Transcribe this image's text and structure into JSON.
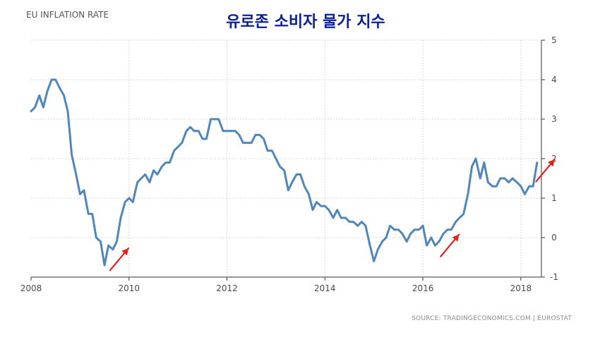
{
  "chart_data": {
    "type": "line",
    "title": "EU INFLATION RATE",
    "subtitle": "유로존 소비자 물가 지수",
    "source": "SOURCE: TRADINGECONOMICS.COM | EUROSTAT",
    "xlabel": "",
    "ylabel": "",
    "xlim": [
      2008.0,
      2018.42
    ],
    "ylim": [
      -1,
      5
    ],
    "x_ticks": [
      "2008",
      "2010",
      "2012",
      "2014",
      "2016",
      "2018"
    ],
    "y_ticks": [
      "5",
      "4",
      "3",
      "2",
      "1",
      "0",
      "-1"
    ],
    "grid": true,
    "series": [
      {
        "color": "#4f86bb",
        "x": [
          2008.0,
          2008.08,
          2008.17,
          2008.25,
          2008.33,
          2008.42,
          2008.5,
          2008.58,
          2008.67,
          2008.75,
          2008.83,
          2008.92,
          2009.0,
          2009.08,
          2009.17,
          2009.25,
          2009.33,
          2009.42,
          2009.5,
          2009.58,
          2009.67,
          2009.75,
          2009.83,
          2009.92,
          2010.0,
          2010.08,
          2010.17,
          2010.25,
          2010.33,
          2010.42,
          2010.5,
          2010.58,
          2010.67,
          2010.75,
          2010.83,
          2010.92,
          2011.0,
          2011.08,
          2011.17,
          2011.25,
          2011.33,
          2011.42,
          2011.5,
          2011.58,
          2011.67,
          2011.75,
          2011.83,
          2011.92,
          2012.0,
          2012.08,
          2012.17,
          2012.25,
          2012.33,
          2012.42,
          2012.5,
          2012.58,
          2012.67,
          2012.75,
          2012.83,
          2012.92,
          2013.0,
          2013.08,
          2013.17,
          2013.25,
          2013.33,
          2013.42,
          2013.5,
          2013.58,
          2013.67,
          2013.75,
          2013.83,
          2013.92,
          2014.0,
          2014.08,
          2014.17,
          2014.25,
          2014.33,
          2014.42,
          2014.5,
          2014.58,
          2014.67,
          2014.75,
          2014.83,
          2014.92,
          2015.0,
          2015.08,
          2015.17,
          2015.25,
          2015.33,
          2015.42,
          2015.5,
          2015.58,
          2015.67,
          2015.75,
          2015.83,
          2015.92,
          2016.0,
          2016.08,
          2016.17,
          2016.25,
          2016.33,
          2016.42,
          2016.5,
          2016.58,
          2016.67,
          2016.75,
          2016.83,
          2016.92,
          2017.0,
          2017.08,
          2017.17,
          2017.25,
          2017.33,
          2017.42,
          2017.5,
          2017.58,
          2017.67,
          2017.75,
          2017.83,
          2017.92,
          2018.0,
          2018.08,
          2018.17,
          2018.25,
          2018.33
        ],
        "y": [
          3.2,
          3.3,
          3.6,
          3.3,
          3.7,
          4.0,
          4.0,
          3.8,
          3.6,
          3.2,
          2.1,
          1.6,
          1.1,
          1.2,
          0.6,
          0.6,
          0.0,
          -0.1,
          -0.7,
          -0.2,
          -0.3,
          -0.1,
          0.5,
          0.9,
          1.0,
          0.9,
          1.4,
          1.5,
          1.6,
          1.4,
          1.7,
          1.6,
          1.8,
          1.9,
          1.9,
          2.2,
          2.3,
          2.4,
          2.7,
          2.8,
          2.7,
          2.7,
          2.5,
          2.5,
          3.0,
          3.0,
          3.0,
          2.7,
          2.7,
          2.7,
          2.7,
          2.6,
          2.4,
          2.4,
          2.4,
          2.6,
          2.6,
          2.5,
          2.2,
          2.2,
          2.0,
          1.8,
          1.7,
          1.2,
          1.4,
          1.6,
          1.6,
          1.3,
          1.1,
          0.7,
          0.9,
          0.8,
          0.8,
          0.7,
          0.5,
          0.7,
          0.5,
          0.5,
          0.4,
          0.4,
          0.3,
          0.4,
          0.3,
          -0.2,
          -0.6,
          -0.3,
          -0.1,
          0.0,
          0.3,
          0.2,
          0.2,
          0.1,
          -0.1,
          0.1,
          0.2,
          0.2,
          0.3,
          -0.2,
          0.0,
          -0.2,
          -0.1,
          0.1,
          0.2,
          0.2,
          0.4,
          0.5,
          0.6,
          1.1,
          1.8,
          2.0,
          1.5,
          1.9,
          1.4,
          1.3,
          1.3,
          1.5,
          1.5,
          1.4,
          1.5,
          1.4,
          1.3,
          1.1,
          1.3,
          1.3,
          1.9
        ]
      }
    ],
    "annotations": [
      {
        "type": "arrow",
        "color": "#e8201a",
        "direction": "up-right",
        "near_x": 2009.8,
        "near_y": -0.55
      },
      {
        "type": "arrow",
        "color": "#e8201a",
        "direction": "up-right",
        "near_x": 2016.55,
        "near_y": -0.2
      },
      {
        "type": "arrow",
        "color": "#e8201a",
        "direction": "up-right",
        "near_x": 2018.5,
        "near_y": 1.7
      }
    ]
  }
}
